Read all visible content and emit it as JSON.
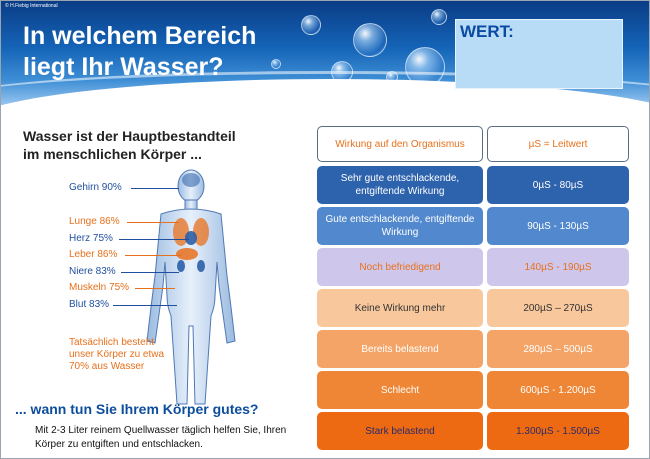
{
  "header": {
    "copyright": "© H.Fiebig International",
    "title_line1": "In welchem Bereich",
    "title_line2": "liegt Ihr Wasser?",
    "wert_label": "WERT:"
  },
  "left": {
    "subtitle_line1": "Wasser ist der Hauptbestandteil",
    "subtitle_line2": "im menschlichen Körper ...",
    "organs": [
      {
        "label": "Gehirn 90%",
        "color": "#1f4f9e"
      },
      {
        "label": "Lunge 86%",
        "color": "#e8701c"
      },
      {
        "label": "Herz 75%",
        "color": "#1f4f9e"
      },
      {
        "label": "Leber 86%",
        "color": "#e8701c"
      },
      {
        "label": "Niere 83%",
        "color": "#1f4f9e"
      },
      {
        "label": "Muskeln 75%",
        "color": "#e8701c"
      },
      {
        "label": "Blut 83%",
        "color": "#1f4f9e"
      }
    ],
    "fact": "Tatsächlich besteht unser Körper zu etwa 70% aus Wasser",
    "question": "... wann tun Sie Ihrem Körper gutes?",
    "advice": "Mit 2-3 Liter reinem Quellwasser täglich helfen Sie, Ihren Körper zu entgiften und entschlacken."
  },
  "table": {
    "header_effect": "Wirkung auf den Organismus",
    "header_value": "µS = Leitwert",
    "rows": [
      {
        "effect": "Sehr gute entschlackende, entgiftende Wirkung",
        "range": "0µS - 80µS",
        "bg": "#2d62ad",
        "fg": "#ffffff"
      },
      {
        "effect": "Gute entschlackende, entgiftende Wirkung",
        "range": "90µS - 130µS",
        "bg": "#5288cd",
        "fg": "#ffffff"
      },
      {
        "effect": "Noch befriedigend",
        "range": "140µS - 190µS",
        "bg": "#cfc6ec",
        "fg": "#e8701c"
      },
      {
        "effect": "Keine Wirkung mehr",
        "range": "200µS – 270µS",
        "bg": "#f8c79c",
        "fg": "#333333"
      },
      {
        "effect": "Bereits belastend",
        "range": "280µS – 500µS",
        "bg": "#f4a467",
        "fg": "#ffffff"
      },
      {
        "effect": "Schlecht",
        "range": "600µS - 1.200µS",
        "bg": "#ef8635",
        "fg": "#ffffff"
      },
      {
        "effect": "Stark belastend",
        "range": "1.300µS - 1.500µS",
        "bg": "#ed6a12",
        "fg": "#2a2a6a"
      }
    ]
  }
}
